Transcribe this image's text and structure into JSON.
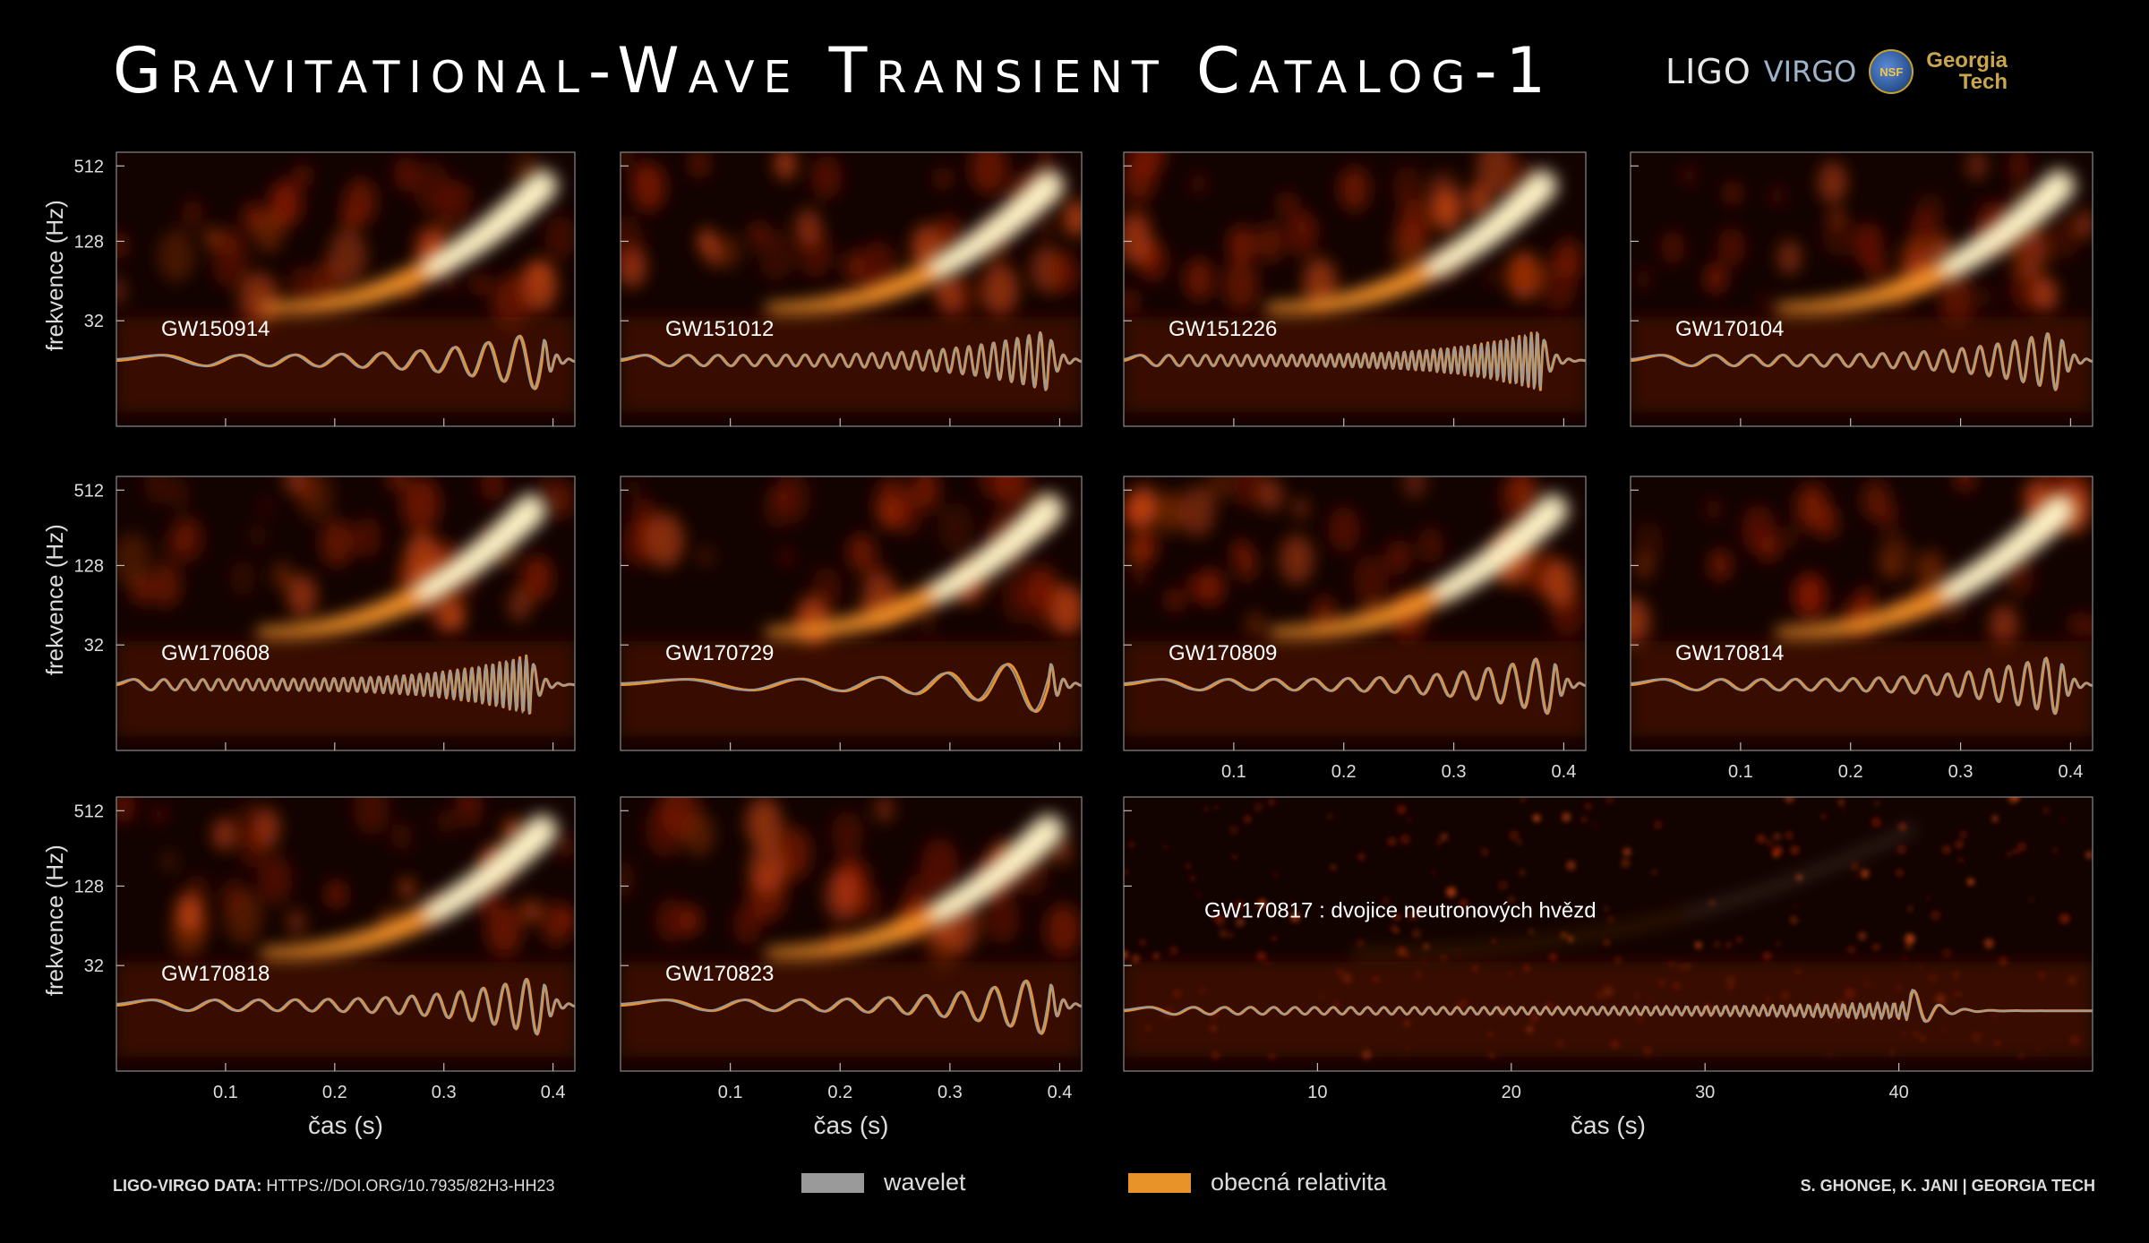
{
  "title": "Gravitational-Wave Transient Catalog-1",
  "logos": {
    "ligo": "LIGO",
    "virgo": "VIRGO",
    "nsf": "NSF",
    "georgia_tech_line1": "Georgia",
    "georgia_tech_line2": "Tech"
  },
  "colors": {
    "gr_orange": "#e8932a",
    "wavelet_gray": "#9a9a9a",
    "background": "#000000"
  },
  "axes": {
    "ylabel": "frekvence (Hz)",
    "xlabel": "čas (s)",
    "y_ticks": [
      "512",
      "128",
      "32"
    ],
    "x_ticks": [
      "0.1",
      "0.2",
      "0.3",
      "0.4"
    ],
    "x_ticks_long": [
      "10",
      "20",
      "30",
      "40"
    ]
  },
  "chart_data": [
    {
      "type": "heatmap",
      "event": "GW150914",
      "x_range": [
        0,
        0.42
      ],
      "y_scale": "log",
      "y_ticks": [
        512,
        128,
        32
      ],
      "chirp_cycles": 9,
      "merger_time": 0.39,
      "x_ticks_shown": false
    },
    {
      "type": "heatmap",
      "event": "GW151012",
      "x_range": [
        0,
        0.42
      ],
      "y_scale": "log",
      "chirp_cycles": 24,
      "merger_time": 0.39,
      "x_ticks_shown": false
    },
    {
      "type": "heatmap",
      "event": "GW151226",
      "x_range": [
        0,
        0.42
      ],
      "y_scale": "log",
      "chirp_cycles": 44,
      "merger_time": 0.38,
      "x_ticks_shown": false
    },
    {
      "type": "heatmap",
      "event": "GW170104",
      "x_range": [
        0,
        0.42
      ],
      "y_scale": "log",
      "chirp_cycles": 17,
      "merger_time": 0.39,
      "x_ticks_shown": false
    },
    {
      "type": "heatmap",
      "event": "GW170608",
      "x_range": [
        0,
        0.42
      ],
      "y_scale": "log",
      "y_ticks": [
        512,
        128,
        32
      ],
      "chirp_cycles": 40,
      "merger_time": 0.38,
      "x_ticks_shown": false
    },
    {
      "type": "heatmap",
      "event": "GW170729",
      "x_range": [
        0,
        0.42
      ],
      "y_scale": "log",
      "chirp_cycles": 5,
      "merger_time": 0.39,
      "x_ticks_shown": false
    },
    {
      "type": "heatmap",
      "event": "GW170809",
      "x_range": [
        0,
        0.42
      ],
      "y_scale": "log",
      "chirp_cycles": 12,
      "merger_time": 0.39,
      "x_ticks": [
        0.1,
        0.2,
        0.3,
        0.4
      ]
    },
    {
      "type": "heatmap",
      "event": "GW170814",
      "x_range": [
        0,
        0.42
      ],
      "y_scale": "log",
      "chirp_cycles": 15,
      "merger_time": 0.39,
      "x_ticks": [
        0.1,
        0.2,
        0.3,
        0.4
      ]
    },
    {
      "type": "heatmap",
      "event": "GW170818",
      "x_range": [
        0,
        0.42
      ],
      "y_scale": "log",
      "y_ticks": [
        512,
        128,
        32
      ],
      "chirp_cycles": 13,
      "merger_time": 0.39,
      "x_ticks": [
        0.1,
        0.2,
        0.3,
        0.4
      ],
      "xlabel": "čas (s)"
    },
    {
      "type": "heatmap",
      "event": "GW170823",
      "x_range": [
        0,
        0.42
      ],
      "y_scale": "log",
      "chirp_cycles": 9,
      "merger_time": 0.39,
      "x_ticks": [
        0.1,
        0.2,
        0.3,
        0.4
      ],
      "xlabel": "čas (s)"
    },
    {
      "type": "heatmap",
      "event": "GW170817 :  dvojice neutronových hvězd",
      "x_range": [
        0,
        50
      ],
      "y_scale": "log",
      "merger_time": 40.5,
      "x_ticks": [
        10,
        20,
        30,
        40
      ],
      "xlabel": "čas (s)"
    }
  ],
  "legend": {
    "wavelet": "wavelet",
    "gr": "obecná relativita"
  },
  "footer": {
    "data_label": "LIGO-VIRGO DATA:",
    "data_url": "HTTPS://DOI.ORG/10.7935/82H3-HH23",
    "credit": "S. GHONGE, K. JANI | GEORGIA TECH"
  }
}
